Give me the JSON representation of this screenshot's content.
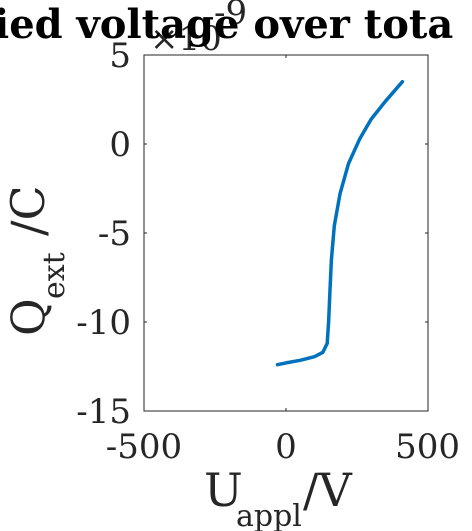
{
  "chart_data": {
    "type": "line",
    "title": "ied voltage over tota",
    "exponent_label": "×10",
    "exponent_power": "-9",
    "xlabel_main": "U",
    "xlabel_sub": "appl",
    "xlabel_unit": "/V",
    "ylabel_main": "Q",
    "ylabel_sub": "ext",
    "ylabel_unit": "/C",
    "xlim": [
      -500,
      500
    ],
    "ylim": [
      -15,
      5
    ],
    "x_ticks": [
      -500,
      0,
      500
    ],
    "x_tick_labels": [
      "-500",
      "0",
      "500"
    ],
    "y_ticks": [
      -15,
      -10,
      -5,
      0,
      5
    ],
    "y_tick_labels": [
      "-15",
      "-10",
      "-5",
      "0",
      "5"
    ],
    "grid": false,
    "series": [
      {
        "color": "#0072BD",
        "x": [
          -30,
          0,
          50,
          100,
          130,
          145,
          150,
          155,
          160,
          170,
          190,
          220,
          260,
          300,
          350,
          410
        ],
        "y": [
          -12.4,
          -12.3,
          -12.15,
          -11.95,
          -11.7,
          -11.2,
          -10,
          -8.2,
          -6.5,
          -4.6,
          -2.8,
          -1.1,
          0.3,
          1.4,
          2.4,
          3.5
        ]
      }
    ]
  }
}
